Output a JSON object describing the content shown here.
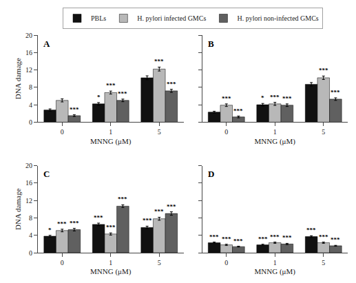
{
  "chart_data": [
    {
      "type": "bar",
      "title": "A",
      "xlabel": "MNNG (μM)",
      "ylabel": "DNA damage",
      "categories": [
        "0",
        "1",
        "5"
      ],
      "series": [
        {
          "name": "PBLs",
          "color": "#111111",
          "values": [
            2.8,
            4.2,
            10.2
          ],
          "errors": [
            0.25,
            0.3,
            0.45
          ],
          "stars": [
            null,
            "*",
            null
          ]
        },
        {
          "name": "H. pylori infected GMCs",
          "color": "#b8b8b8",
          "values": [
            5.0,
            6.8,
            12.2
          ],
          "errors": [
            0.35,
            0.35,
            0.45
          ],
          "stars": [
            null,
            "***",
            "***"
          ]
        },
        {
          "name": "H. pylori non-infected GMCs",
          "color": "#606060",
          "values": [
            1.5,
            5.0,
            7.2
          ],
          "errors": [
            0.2,
            0.3,
            0.35
          ],
          "stars": [
            "***",
            "***",
            "***"
          ]
        }
      ],
      "ylim": [
        0,
        20
      ],
      "yticks": [
        0,
        4,
        8,
        12,
        16,
        20
      ],
      "grid": false,
      "legend": "top"
    },
    {
      "type": "bar",
      "title": "B",
      "xlabel": "MNNG (μM)",
      "categories": [
        "0",
        "1",
        "5"
      ],
      "series": [
        {
          "name": "PBLs",
          "color": "#111111",
          "values": [
            2.3,
            4.0,
            8.7
          ],
          "errors": [
            0.2,
            0.3,
            0.4
          ],
          "stars": [
            null,
            "*",
            null
          ]
        },
        {
          "name": "H. pylori infected GMCs",
          "color": "#b8b8b8",
          "values": [
            3.9,
            4.2,
            10.2
          ],
          "errors": [
            0.3,
            0.35,
            0.4
          ],
          "stars": [
            "***",
            "***",
            "***"
          ]
        },
        {
          "name": "H. pylori non-infected GMCs",
          "color": "#606060",
          "values": [
            1.2,
            3.9,
            5.3
          ],
          "errors": [
            0.2,
            0.3,
            0.3
          ],
          "stars": [
            "***",
            "***",
            "***"
          ]
        }
      ],
      "ylim": [
        0,
        20
      ],
      "yticks": [
        0,
        4,
        8,
        12,
        16,
        20
      ],
      "grid": false,
      "tick_labels": "x"
    },
    {
      "type": "bar",
      "title": "C",
      "xlabel": "MNNG (μM)",
      "ylabel": "DNA damage",
      "categories": [
        "0",
        "1",
        "5"
      ],
      "series": [
        {
          "name": "PBLs",
          "color": "#111111",
          "values": [
            3.8,
            6.5,
            5.8
          ],
          "errors": [
            0.2,
            0.3,
            0.3
          ],
          "stars": [
            "*",
            "***",
            "***"
          ]
        },
        {
          "name": "H. pylori infected GMCs",
          "color": "#b8b8b8",
          "values": [
            5.1,
            4.3,
            7.8
          ],
          "errors": [
            0.3,
            0.25,
            0.35
          ],
          "stars": [
            "***",
            "***",
            "***"
          ]
        },
        {
          "name": "H. pylori non-infected GMCs",
          "color": "#606060",
          "values": [
            5.3,
            10.7,
            9.0
          ],
          "errors": [
            0.3,
            0.3,
            0.4
          ],
          "stars": [
            "***",
            "***",
            "***"
          ]
        }
      ],
      "ylim": [
        0,
        20
      ],
      "yticks": [
        0,
        4,
        8,
        12,
        16,
        20
      ],
      "grid": false
    },
    {
      "type": "bar",
      "title": "D",
      "xlabel": "MNNG (μM)",
      "categories": [
        "0",
        "1",
        "5"
      ],
      "series": [
        {
          "name": "PBLs",
          "color": "#111111",
          "values": [
            2.3,
            1.8,
            3.7
          ],
          "errors": [
            0.15,
            0.15,
            0.2
          ],
          "stars": [
            "***",
            "***",
            "***"
          ]
        },
        {
          "name": "H. pylori infected GMCs",
          "color": "#b8b8b8",
          "values": [
            1.8,
            2.3,
            2.3
          ],
          "errors": [
            0.15,
            0.15,
            0.15
          ],
          "stars": [
            "***",
            "***",
            "***"
          ]
        },
        {
          "name": "H. pylori non-infected GMCs",
          "color": "#606060",
          "values": [
            1.4,
            2.0,
            1.6
          ],
          "errors": [
            0.1,
            0.15,
            0.1
          ],
          "stars": [
            "***",
            "***",
            "***"
          ]
        }
      ],
      "ylim": [
        0,
        20
      ],
      "yticks": [
        0,
        4,
        8,
        12,
        16,
        20
      ],
      "grid": false,
      "tick_labels": "x"
    }
  ]
}
